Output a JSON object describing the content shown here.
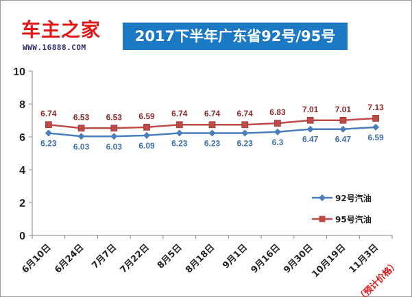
{
  "logo": {
    "text": "车主之家",
    "url": "WWW.16888.COM"
  },
  "chart_data": {
    "type": "line",
    "title": "2017下半年广东省92号/95号",
    "categories": [
      "6月10日",
      "6月24日",
      "7月7日",
      "7月22日",
      "8月5日",
      "8月18日",
      "9月1日",
      "9月16日",
      "9月30日",
      "10月19日",
      "11月3日"
    ],
    "note": "（预计价格）",
    "ylim": [
      0,
      10
    ],
    "yticks": [
      "0",
      "2",
      "4",
      "6",
      "8",
      "10"
    ],
    "ytick_values": [
      0,
      2,
      4,
      6,
      8,
      10
    ],
    "grid": false,
    "legend_position": "right",
    "series": [
      {
        "name": "92号汽油",
        "values": [
          6.23,
          6.03,
          6.03,
          6.09,
          6.23,
          6.23,
          6.23,
          6.3,
          6.47,
          6.47,
          6.59
        ],
        "labels": [
          "6.23",
          "6.03",
          "6.03",
          "6.09",
          "6.23",
          "6.23",
          "6.23",
          "6.3",
          "6.47",
          "6.47",
          "6.59"
        ],
        "color": "#4a7ebb",
        "label_color": "#3d6fa5",
        "marker": "diamond"
      },
      {
        "name": "95号汽油",
        "values": [
          6.74,
          6.53,
          6.53,
          6.59,
          6.74,
          6.74,
          6.74,
          6.83,
          7.01,
          7.01,
          7.13
        ],
        "labels": [
          "6.74",
          "6.53",
          "6.53",
          "6.59",
          "6.74",
          "6.74",
          "6.74",
          "6.83",
          "7.01",
          "7.01",
          "7.13"
        ],
        "color": "#be4b48",
        "label_color": "#8b2b2b",
        "marker": "square"
      }
    ],
    "note_color": "#e01818"
  }
}
